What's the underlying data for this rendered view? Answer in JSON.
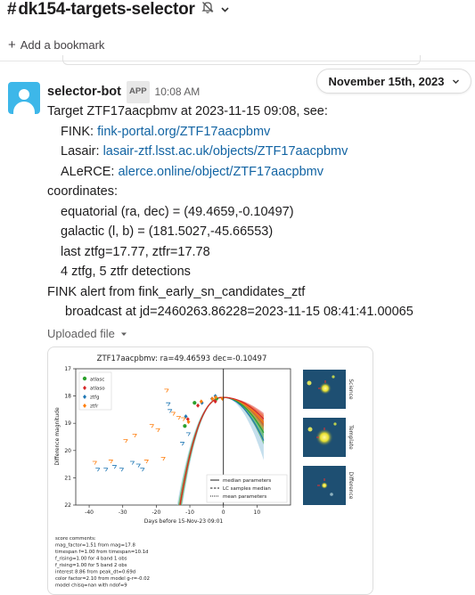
{
  "channel": {
    "hash": "#",
    "name": "dk154-targets-selector"
  },
  "bookmark": {
    "plus": "+",
    "label": "Add a bookmark"
  },
  "date_divider": {
    "label": "November 15th, 2023"
  },
  "message": {
    "sender": "selector-bot",
    "badge": "APP",
    "time": "10:08 AM",
    "lines": {
      "target": "Target ZTF17aacpbmv at 2023-11-15 09:08, see:",
      "fink_label": "FINK: ",
      "fink_link": "fink-portal.org/ZTF17aacpbmv",
      "lasair_label": "Lasair: ",
      "lasair_link": "lasair-ztf.lsst.ac.uk/objects/ZTF17aacpbmv",
      "alerce_label": "ALeRCE: ",
      "alerce_link": "alerce.online/object/ZTF17aacpbmv",
      "coords_header": "coordinates:",
      "equatorial": "equatorial (ra, dec) = (49.4659,-0.10497)",
      "galactic": "galactic (l, b) = (181.5027,-45.66553)",
      "last_mag": "last ztfg=17.77, ztfr=17.78",
      "detections": "4 ztfg, 5 ztfr detections",
      "fink_alert": "FINK alert from fink_early_sn_candidates_ztf",
      "broadcast": "broadcast at jd=2460263.86228=2023-11-15 08:41:41.00065"
    },
    "uploaded_label": "Uploaded file"
  },
  "plot": {
    "title": "ZTF17aacpbmv: ra=49.46593 dec=-0.10497",
    "xlabel": "Days before 15-Nov-23 09:01",
    "ylabel": "Difference magnitude",
    "xlim": [
      -44,
      20
    ],
    "ylim": [
      22,
      17
    ],
    "xticks": [
      "-40",
      "-30",
      "-20",
      "-10",
      "0",
      "10"
    ],
    "yticks": [
      "17",
      "18",
      "19",
      "20",
      "21",
      "22"
    ],
    "legend_series": [
      "atlasc",
      "atlaso",
      "ztfg",
      "ztfr"
    ],
    "legend_lines": [
      "median parameters",
      "LC samples median",
      "mean parameters"
    ],
    "stamp_labels": [
      "Science",
      "Template",
      "Difference"
    ],
    "score_header": "score comments:",
    "score_lines": [
      "mag_factor=1.51 from mag=17.8",
      "timespan f=1.00 from timespan=10.1d",
      "f_rising=1.00 for 4 band 1 obs",
      "f_rising=1.00 for 5 band 2 obs",
      "interest 8.86 from peak_dt=0.69d",
      "color factor=2.10 from model g-r=-0.02",
      "model chisq=nan with ndof=9"
    ],
    "colors": {
      "atlasc": "#2ca02c",
      "atlaso": "#d62728",
      "ztfg": "#1f77b4",
      "ztfr": "#ff7f0e"
    }
  },
  "chart_data": {
    "type": "scatter",
    "title": "ZTF17aacpbmv: ra=49.46593 dec=-0.10497",
    "xlabel": "Days before 15-Nov-23 09:01",
    "ylabel": "Difference magnitude",
    "xlim": [
      -44,
      20
    ],
    "ylim": [
      22,
      17
    ],
    "series": [
      {
        "name": "atlasc",
        "points": [
          [
            -11.5,
            19.1
          ],
          [
            -8.6,
            18.25
          ],
          [
            -2.1,
            18.1
          ]
        ]
      },
      {
        "name": "atlaso",
        "points": [
          [
            -10.6,
            18.85
          ],
          [
            -7.6,
            18.35
          ],
          [
            -2.4,
            18.2
          ]
        ]
      },
      {
        "name": "ztfg",
        "points": [
          [
            -11.2,
            18.75
          ],
          [
            -6.4,
            18.25
          ],
          [
            -3.4,
            18.1
          ],
          [
            -2.4,
            18.0
          ]
        ]
      },
      {
        "name": "ztfr",
        "points": [
          [
            -10.4,
            18.95
          ],
          [
            -6.6,
            18.2
          ],
          [
            -3.3,
            18.1
          ],
          [
            -2.3,
            18.05
          ],
          [
            -0.3,
            18.1
          ]
        ]
      },
      {
        "name": "ztfg upper limits",
        "points": [
          [
            -37.5,
            20.7
          ],
          [
            -35.1,
            20.7
          ],
          [
            -32.5,
            20.6
          ],
          [
            -30.4,
            20.7
          ],
          [
            -27.2,
            20.45
          ],
          [
            -25.4,
            20.55
          ],
          [
            -24.2,
            20.7
          ],
          [
            -16.5,
            18.3
          ],
          [
            -16.0,
            18.55
          ],
          [
            -12.3,
            19.75
          ],
          [
            -10.5,
            19.4
          ]
        ]
      },
      {
        "name": "ztfr upper limits",
        "points": [
          [
            -38.4,
            20.45
          ],
          [
            -33.6,
            20.4
          ],
          [
            -29.2,
            19.65
          ],
          [
            -26.5,
            19.45
          ],
          [
            -23.0,
            20.4
          ],
          [
            -21.4,
            19.1
          ],
          [
            -19.6,
            19.25
          ],
          [
            -18.0,
            20.3
          ],
          [
            -17.0,
            17.8
          ],
          [
            -15.0,
            18.65
          ],
          [
            -13.4,
            18.8
          ],
          [
            -12.0,
            18.85
          ]
        ]
      }
    ],
    "legend": "top-left"
  }
}
